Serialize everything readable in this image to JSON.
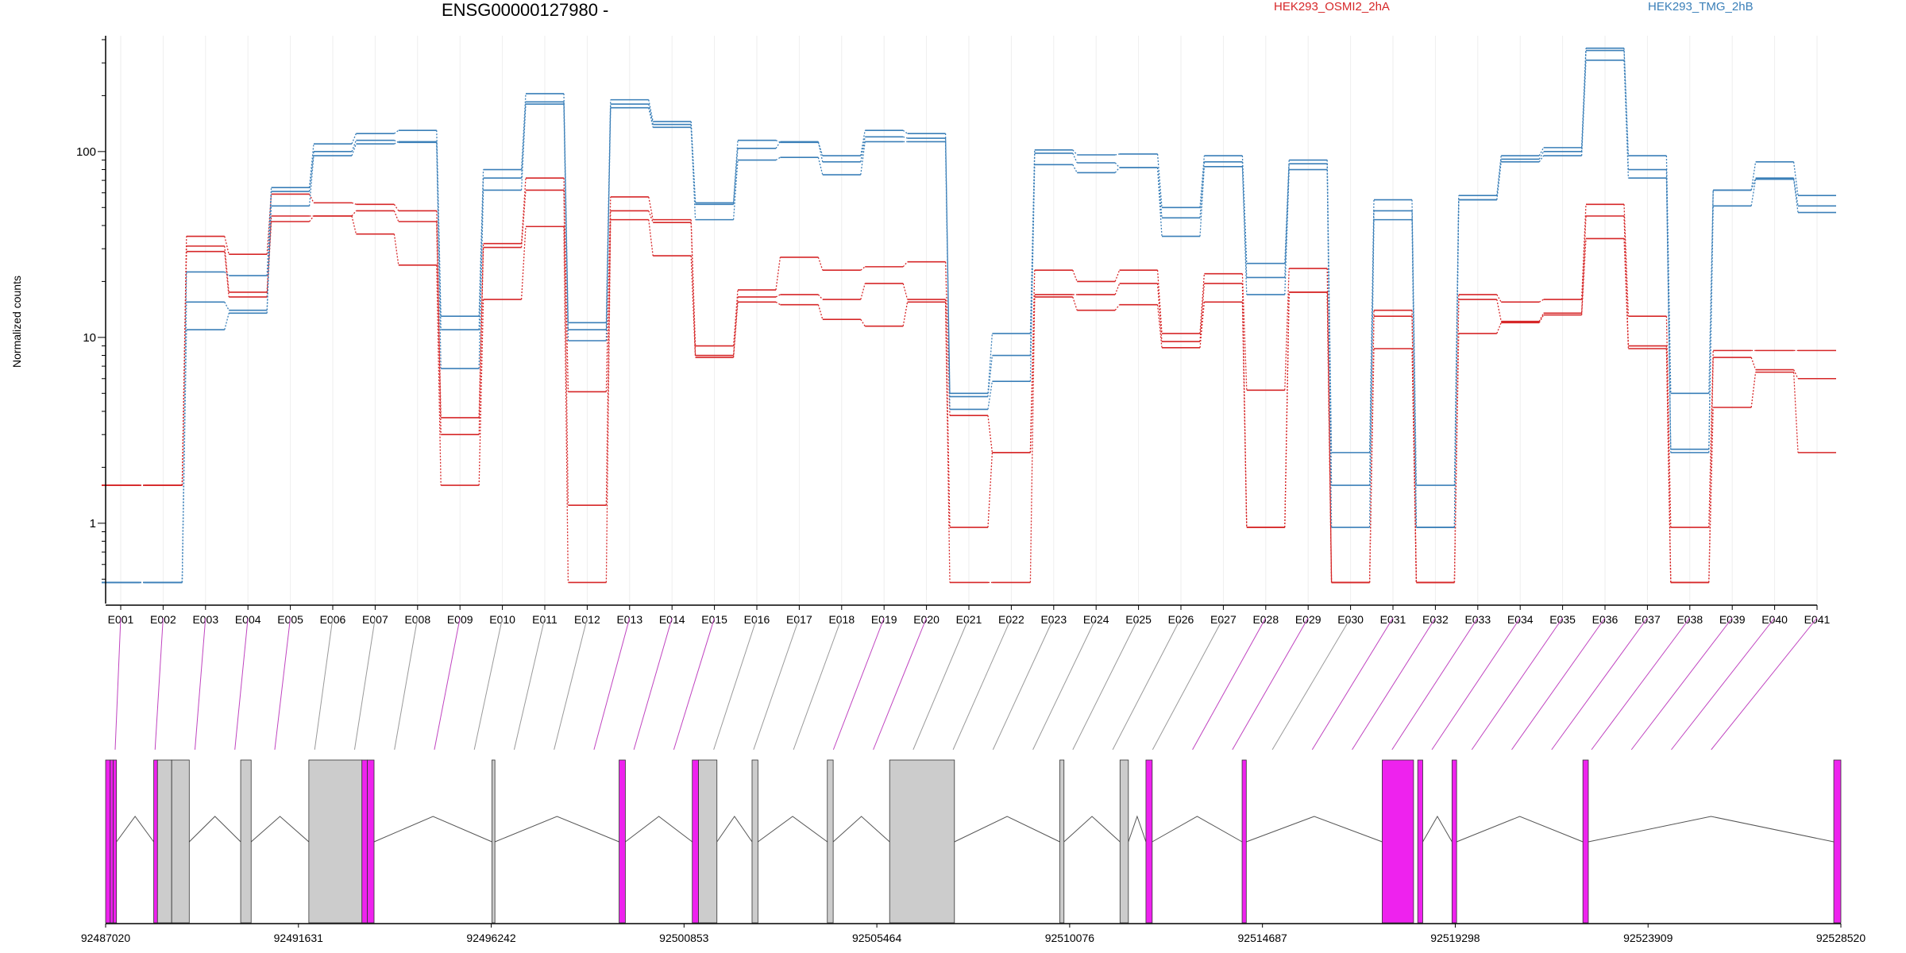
{
  "title": "ENSG00000127980 -",
  "ylabel": "Normalized counts",
  "legend": [
    {
      "label": "HEK293_OSMI2_2hA",
      "color": "#d62728"
    },
    {
      "label": "HEK293_TMG_2hB",
      "color": "#3a7fb8"
    }
  ],
  "colors": {
    "red_series": "#d62728",
    "blue_series": "#3a7fb8",
    "exon_highlight": "#ee22ee",
    "exon_normal": "#cccccc",
    "connector_gray": "#9a9a9a",
    "connector_magenta": "#c044c0"
  },
  "chart_data": {
    "type": "line",
    "yscale": "log",
    "ylim": [
      0.45,
      420
    ],
    "yticks": [
      1,
      10,
      100
    ],
    "ytick_labels": [
      "1",
      "10",
      "100"
    ],
    "categories": [
      "E001",
      "E002",
      "E003",
      "E004",
      "E005",
      "E006",
      "E007",
      "E008",
      "E009",
      "E010",
      "E011",
      "E012",
      "E013",
      "E014",
      "E015",
      "E016",
      "E017",
      "E018",
      "E019",
      "E020",
      "E021",
      "E022",
      "E023",
      "E024",
      "E025",
      "E026",
      "E027",
      "E028",
      "E029",
      "E030",
      "E031",
      "E032",
      "E033",
      "E034",
      "E035",
      "E036",
      "E037",
      "E038",
      "E039",
      "E040",
      "E041"
    ],
    "series": [
      {
        "group": "red",
        "values": [
          1.6,
          1.6,
          35,
          28,
          59,
          53,
          52,
          48,
          3.7,
          32,
          72,
          5.1,
          57,
          43,
          9,
          18,
          27,
          23,
          24,
          25.5,
          3.8,
          2.4,
          23,
          20,
          23,
          10.5,
          22,
          5.2,
          23.5,
          0.48,
          14,
          0.48,
          17,
          15.5,
          16,
          52,
          13,
          0.95,
          8.5,
          8.5,
          8.5
        ]
      },
      {
        "group": "red",
        "values": [
          1.6,
          1.6,
          31,
          17.5,
          45,
          45,
          48,
          42,
          3,
          30.5,
          62,
          1.25,
          48,
          41.5,
          8,
          16.5,
          17,
          16,
          19.5,
          16,
          0.95,
          2.4,
          17,
          17,
          19.5,
          9.5,
          19.5,
          0.95,
          17.5,
          0.48,
          13,
          0.48,
          16,
          12.2,
          13.5,
          45,
          9,
          0.48,
          7.8,
          6.7,
          6
        ]
      },
      {
        "group": "red",
        "values": [
          1.6,
          1.6,
          29,
          16.5,
          42,
          45,
          36,
          24.5,
          1.6,
          16,
          39.5,
          0.48,
          43,
          27.5,
          7.8,
          15.5,
          15,
          12.5,
          11.5,
          15.5,
          0.48,
          0.48,
          16.5,
          14,
          15,
          8.8,
          15.5,
          0.95,
          17.5,
          0.48,
          8.7,
          0.48,
          10.5,
          12,
          13.2,
          34,
          8.7,
          0.48,
          4.2,
          6.5,
          2.4
        ]
      },
      {
        "group": "blue",
        "values": [
          0.48,
          0.48,
          22.5,
          21.5,
          64,
          110,
          125,
          130,
          13,
          80,
          205,
          12,
          190,
          145,
          53,
          115,
          112,
          95,
          130,
          125,
          5,
          10.5,
          102,
          96,
          97,
          50,
          95,
          25,
          90,
          2.4,
          55,
          1.6,
          58,
          95,
          105,
          360,
          95,
          5,
          62,
          88,
          58
        ]
      },
      {
        "group": "blue",
        "values": [
          0.48,
          0.48,
          15.5,
          14,
          61,
          100,
          115,
          112,
          11,
          72,
          185,
          11,
          180,
          140,
          52,
          104,
          113,
          88,
          120,
          118,
          4.8,
          8,
          98,
          87,
          82,
          44,
          88,
          21,
          86,
          1.6,
          48,
          0.95,
          55,
          91,
          100,
          350,
          80,
          2.5,
          62,
          72,
          51
        ]
      },
      {
        "group": "blue",
        "values": [
          0.48,
          0.48,
          11,
          13.5,
          51,
          95,
          110,
          113,
          6.8,
          62,
          180,
          9.6,
          172,
          135,
          43,
          90,
          93,
          75,
          113,
          113,
          4.1,
          5.8,
          85,
          77,
          82,
          35,
          83,
          17,
          80,
          0.95,
          43,
          0.95,
          55,
          88,
          95,
          310,
          72,
          2.4,
          51,
          71,
          47
        ]
      }
    ],
    "genomic_axis": {
      "tick_labels": [
        "92487020",
        "92491631",
        "92496242",
        "92500853",
        "92505464",
        "92510076",
        "92514687",
        "92519298",
        "92523909",
        "92528520"
      ],
      "exons": [
        {
          "start": 92487020,
          "end": 92487130,
          "highlight": true
        },
        {
          "start": 92487130,
          "end": 92487200,
          "highlight": true
        },
        {
          "start": 92487200,
          "end": 92487280,
          "highlight": true
        },
        {
          "start": 92488170,
          "end": 92488260,
          "highlight": true
        },
        {
          "start": 92488260,
          "end": 92488600,
          "highlight": false
        },
        {
          "start": 92488600,
          "end": 92489020,
          "highlight": false
        },
        {
          "start": 92490250,
          "end": 92490500,
          "highlight": false
        },
        {
          "start": 92491880,
          "end": 92493150,
          "highlight": false
        },
        {
          "start": 92493150,
          "end": 92493280,
          "highlight": true
        },
        {
          "start": 92493280,
          "end": 92493440,
          "highlight": true
        },
        {
          "start": 92496260,
          "end": 92496330,
          "highlight": false
        },
        {
          "start": 92499300,
          "end": 92499450,
          "highlight": true
        },
        {
          "start": 92501050,
          "end": 92501200,
          "highlight": true
        },
        {
          "start": 92501200,
          "end": 92501640,
          "highlight": false
        },
        {
          "start": 92502480,
          "end": 92502620,
          "highlight": false
        },
        {
          "start": 92504280,
          "end": 92504420,
          "highlight": false
        },
        {
          "start": 92505770,
          "end": 92507320,
          "highlight": false
        },
        {
          "start": 92509840,
          "end": 92509940,
          "highlight": false
        },
        {
          "start": 92511280,
          "end": 92511480,
          "highlight": false
        },
        {
          "start": 92511900,
          "end": 92512050,
          "highlight": true
        },
        {
          "start": 92514200,
          "end": 92514300,
          "highlight": true
        },
        {
          "start": 92517550,
          "end": 92518300,
          "highlight": true
        },
        {
          "start": 92518400,
          "end": 92518520,
          "highlight": true
        },
        {
          "start": 92519220,
          "end": 92519330,
          "highlight": true
        },
        {
          "start": 92522350,
          "end": 92522480,
          "highlight": true
        },
        {
          "start": 92528350,
          "end": 92528520,
          "highlight": true
        }
      ]
    }
  }
}
